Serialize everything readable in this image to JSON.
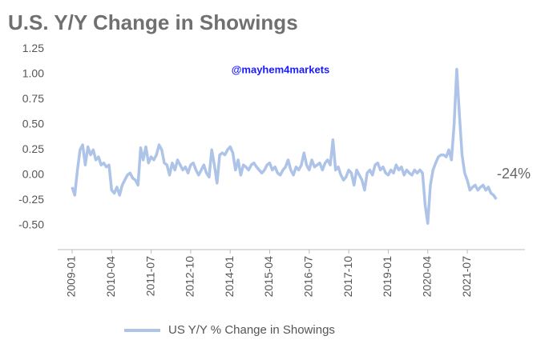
{
  "chart_data": {
    "type": "line",
    "title": "U.S. Y/Y Change in Showings",
    "annotations": [
      "@mayhem4markets",
      "-24%"
    ],
    "categories": [
      "2009-01",
      null,
      null,
      null,
      null,
      null,
      null,
      null,
      null,
      null,
      null,
      null,
      null,
      null,
      null,
      "2010-04",
      null,
      null,
      null,
      null,
      null,
      null,
      null,
      null,
      null,
      null,
      null,
      null,
      null,
      null,
      "2011-07",
      null,
      null,
      null,
      null,
      null,
      null,
      null,
      null,
      null,
      null,
      null,
      null,
      null,
      null,
      "2012-10",
      null,
      null,
      null,
      null,
      null,
      null,
      null,
      null,
      null,
      null,
      null,
      null,
      null,
      null,
      "2014-01",
      null,
      null,
      null,
      null,
      null,
      null,
      null,
      null,
      null,
      null,
      null,
      null,
      null,
      null,
      "2015-04",
      null,
      null,
      null,
      null,
      null,
      null,
      null,
      null,
      null,
      null,
      null,
      null,
      null,
      null,
      "2016-07",
      null,
      null,
      null,
      null,
      null,
      null,
      null,
      null,
      null,
      null,
      null,
      null,
      null,
      null,
      "2017-10",
      null,
      null,
      null,
      null,
      null,
      null,
      null,
      null,
      null,
      null,
      null,
      null,
      null,
      null,
      "2019-01",
      null,
      null,
      null,
      null,
      null,
      null,
      null,
      null,
      null,
      null,
      null,
      null,
      null,
      null,
      "2020-04",
      null,
      null,
      null,
      null,
      null,
      null,
      null,
      null,
      null,
      null,
      null,
      null,
      null,
      null,
      "2021-07",
      null,
      null,
      null,
      null,
      null,
      null,
      null,
      null,
      null,
      null,
      null
    ],
    "series": [
      {
        "name": "US Y/Y % Change in Showings",
        "color": "#aec3e8",
        "values": [
          -0.12,
          -0.2,
          0.05,
          0.25,
          0.3,
          0.1,
          0.28,
          0.2,
          0.25,
          0.15,
          0.18,
          0.1,
          0.12,
          0.08,
          0.1,
          -0.15,
          -0.18,
          -0.12,
          -0.2,
          -0.1,
          -0.05,
          0.0,
          0.02,
          -0.03,
          -0.05,
          -0.1,
          0.27,
          0.15,
          0.28,
          0.12,
          0.18,
          0.15,
          0.2,
          0.3,
          0.25,
          0.12,
          0.1,
          0.0,
          0.12,
          0.05,
          0.15,
          0.1,
          0.05,
          0.08,
          0.02,
          0.1,
          0.12,
          0.05,
          0.0,
          0.05,
          0.1,
          0.02,
          -0.02,
          0.25,
          0.1,
          -0.08,
          0.2,
          0.22,
          0.2,
          0.25,
          0.28,
          0.22,
          0.05,
          0.15,
          0.0,
          0.1,
          0.08,
          0.05,
          0.1,
          0.12,
          0.08,
          0.05,
          0.02,
          0.05,
          0.1,
          0.12,
          0.05,
          0.08,
          0.02,
          0.0,
          0.05,
          0.08,
          0.15,
          0.05,
          0.0,
          0.08,
          0.05,
          0.1,
          0.22,
          0.1,
          0.05,
          0.15,
          0.08,
          0.1,
          0.12,
          0.05,
          0.12,
          0.15,
          0.1,
          0.35,
          0.05,
          0.08,
          0.0,
          -0.05,
          -0.02,
          0.05,
          0.02,
          -0.1,
          0.05,
          0.0,
          -0.05,
          -0.15,
          0.02,
          0.05,
          0.0,
          0.1,
          0.12,
          0.05,
          0.08,
          0.02,
          0.0,
          0.05,
          0.02,
          0.1,
          0.05,
          0.08,
          0.0,
          0.05,
          0.02,
          0.0,
          0.05,
          0.02,
          0.05,
          0.02,
          -0.3,
          -0.48,
          -0.1,
          0.05,
          0.12,
          0.18,
          0.2,
          0.2,
          0.18,
          0.25,
          0.15,
          0.5,
          1.05,
          0.6,
          0.2,
          0.02,
          -0.05,
          -0.15,
          -0.12,
          -0.1,
          -0.15,
          -0.12,
          -0.1,
          -0.15,
          -0.12,
          -0.18,
          -0.2,
          -0.24
        ]
      }
    ],
    "ylim": [
      -0.74,
      1.3
    ],
    "yticks": [
      {
        "value": -0.5,
        "label": "-0.50"
      },
      -0.25,
      {
        "value": 0,
        "label": "0.00"
      },
      0.25,
      {
        "value": 0.5,
        "label": "0.50"
      },
      0.75,
      {
        "value": 1,
        "label": "1.00"
      },
      1.25
    ],
    "legend": "bottom",
    "grid": false
  }
}
